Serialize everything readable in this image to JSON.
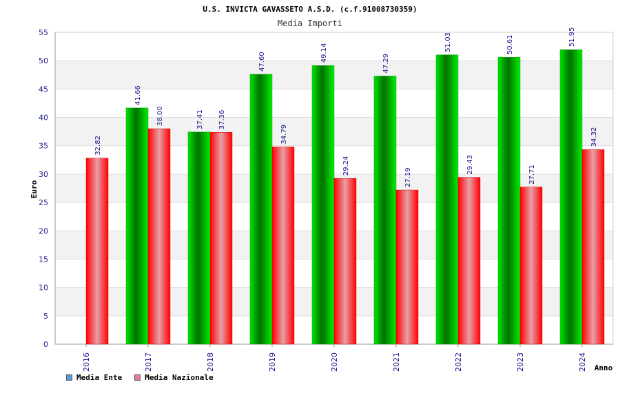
{
  "title": "U.S. INVICTA GAVASSETO A.S.D. (c.f.91008730359)",
  "subtitle": "Media Importi",
  "legend": {
    "items": [
      {
        "label": "Media Ente",
        "color": "#5b9bd5"
      },
      {
        "label": "Media Nazionale",
        "color": "#e07aa8"
      }
    ]
  },
  "chart_data": {
    "type": "bar",
    "title": "U.S. INVICTA GAVASSETO A.S.D. (c.f.91008730359)",
    "subtitle": "Media Importi",
    "xlabel": "Anno",
    "ylabel": "Euro",
    "categories": [
      "2016",
      "2017",
      "2018",
      "2019",
      "2020",
      "2021",
      "2022",
      "2023",
      "2024"
    ],
    "series": [
      {
        "name": "Media Ente",
        "values": [
          null,
          41.66,
          37.41,
          47.6,
          49.14,
          47.29,
          51.03,
          50.61,
          51.95
        ],
        "labels": [
          "",
          "41.66",
          "37.41",
          "47.60",
          "49.14",
          "47.29",
          "51.03",
          "50.61",
          "51.95"
        ],
        "color": "#00c800"
      },
      {
        "name": "Media Nazionale",
        "values": [
          32.82,
          38.0,
          37.36,
          34.79,
          29.24,
          27.19,
          29.43,
          27.71,
          34.32
        ],
        "labels": [
          "32.82",
          "38.00",
          "37.36",
          "34.79",
          "29.24",
          "27.19",
          "29.43",
          "27.71",
          "34.32"
        ],
        "color": "#ff0000"
      }
    ],
    "ylim": [
      0,
      55
    ],
    "yticks": [
      "0",
      "5",
      "10",
      "15",
      "20",
      "25",
      "30",
      "35",
      "40",
      "45",
      "50",
      "55"
    ],
    "grid": true,
    "legend_position": "bottom-left"
  }
}
